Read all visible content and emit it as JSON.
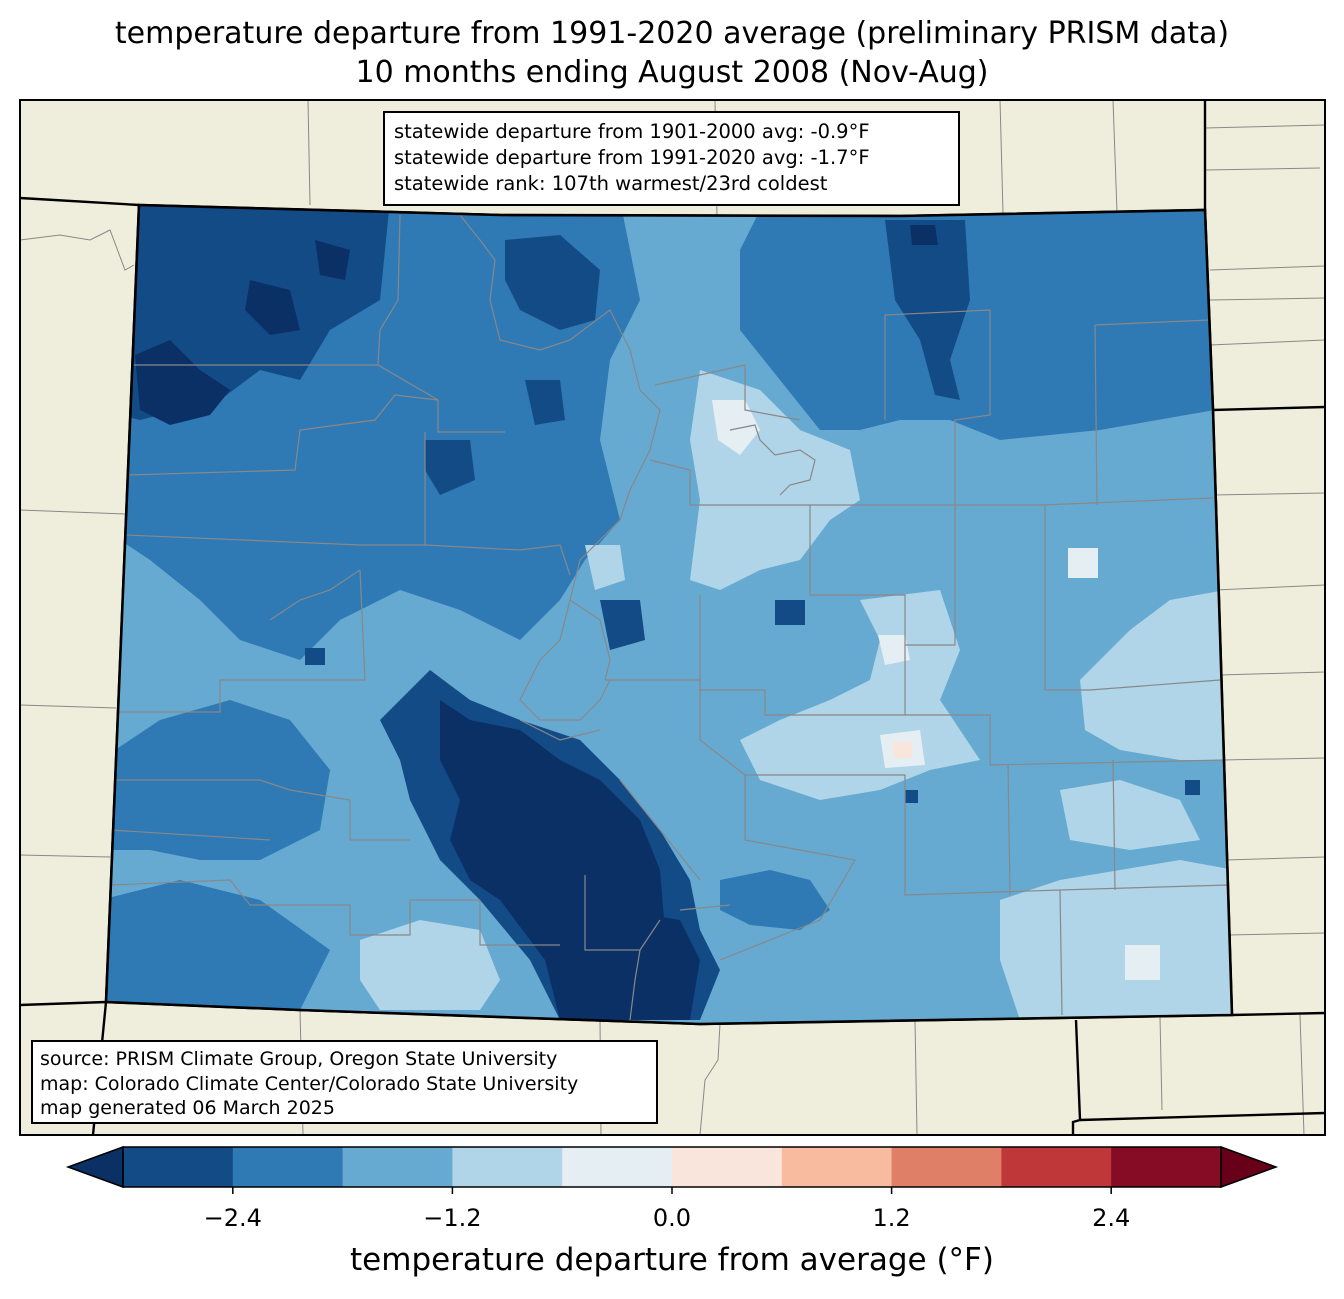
{
  "title": {
    "line1": "temperature departure from 1991-2020 average (preliminary PRISM data)",
    "line2": "10 months ending August 2008 (Nov-Aug)"
  },
  "stats": {
    "line1": "statewide departure from 1901-2000 avg: -0.9°F",
    "line2": "statewide departure from 1991-2020 avg: -1.7°F",
    "line3": "statewide rank: 107th warmest/23rd coldest"
  },
  "source": {
    "line1": "source: PRISM Climate Group, Oregon State University",
    "line2": "map: Colorado Climate Center/Colorado State University",
    "line3": "map generated 06 March 2025"
  },
  "colorbar": {
    "label": "temperature departure from average (°F)",
    "ticks": [
      "−2.4",
      "−1.2",
      "0.0",
      "1.2",
      "2.4"
    ],
    "tick_values": [
      -2.4,
      -1.2,
      0.0,
      1.2,
      2.4
    ],
    "levels": [
      -3.0,
      -2.4,
      -1.8,
      -1.2,
      -0.6,
      0.0,
      0.6,
      1.2,
      1.8,
      2.4,
      3.0
    ],
    "colors": [
      "#134b87",
      "#2f79b5",
      "#67aad1",
      "#b1d5e8",
      "#e4eef3",
      "#fae5dc",
      "#f8bba0",
      "#e07f67",
      "#c0373a",
      "#860b24"
    ],
    "under_color": "#0a3066",
    "over_color": "#680019"
  },
  "colors": {
    "land": "#efeedc",
    "very_cold": "#0a3066",
    "cold": "#134b87",
    "moderate": "#2f79b5",
    "cool": "#67aad1",
    "slight": "#b1d5e8",
    "near_zero": "#e4eef3",
    "warm": "#fae5dc",
    "county_line": "#888888"
  }
}
